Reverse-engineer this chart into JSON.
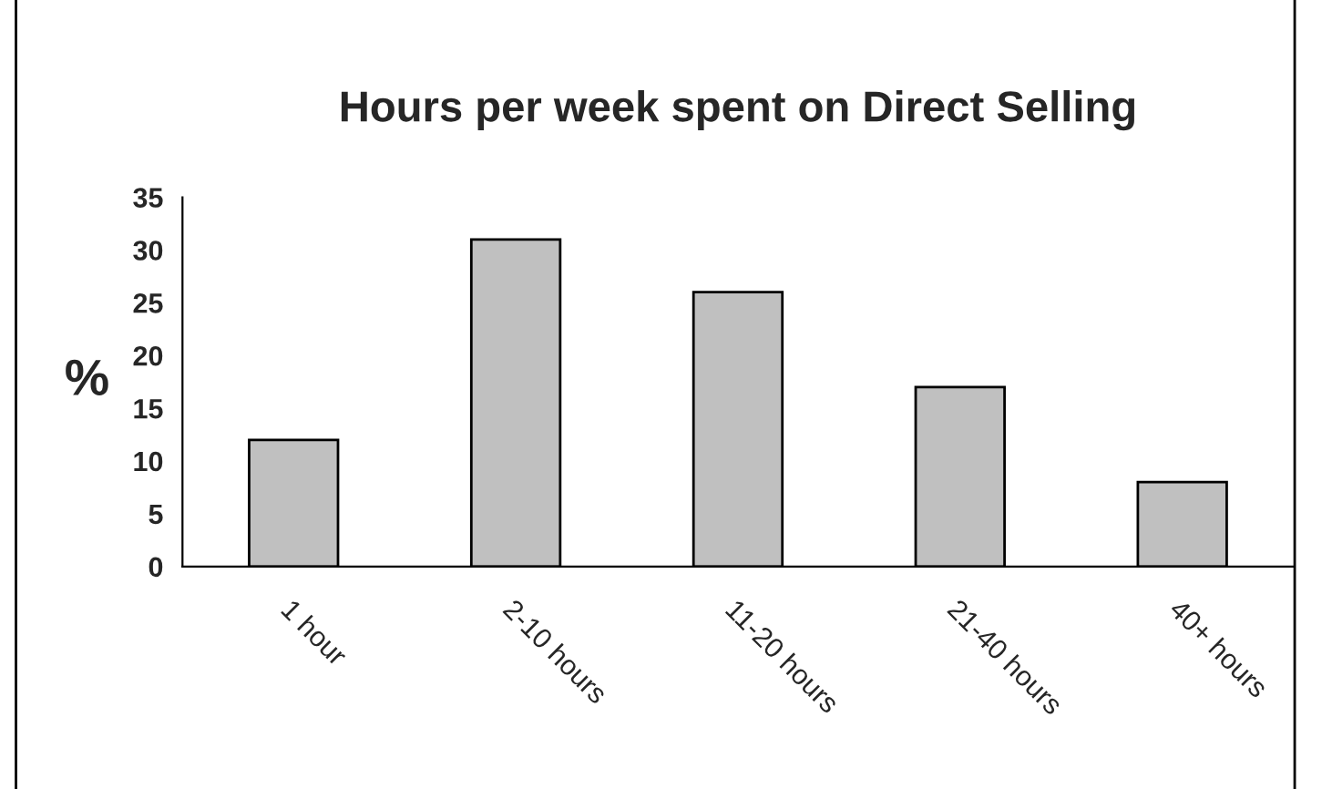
{
  "chart_data": {
    "type": "bar",
    "title": "Hours per week spent on Direct Selling",
    "ylabel": "%",
    "categories": [
      "1 hour",
      "2-10 hours",
      "11-20 hours",
      "21-40 hours",
      "40+ hours"
    ],
    "values": [
      12,
      31,
      26,
      17,
      8
    ],
    "color": "#c0c0c0",
    "ylim": [
      0,
      35
    ],
    "yticks": [
      0,
      5,
      10,
      15,
      20,
      25,
      30,
      35
    ],
    "grid": false,
    "legend": false
  }
}
